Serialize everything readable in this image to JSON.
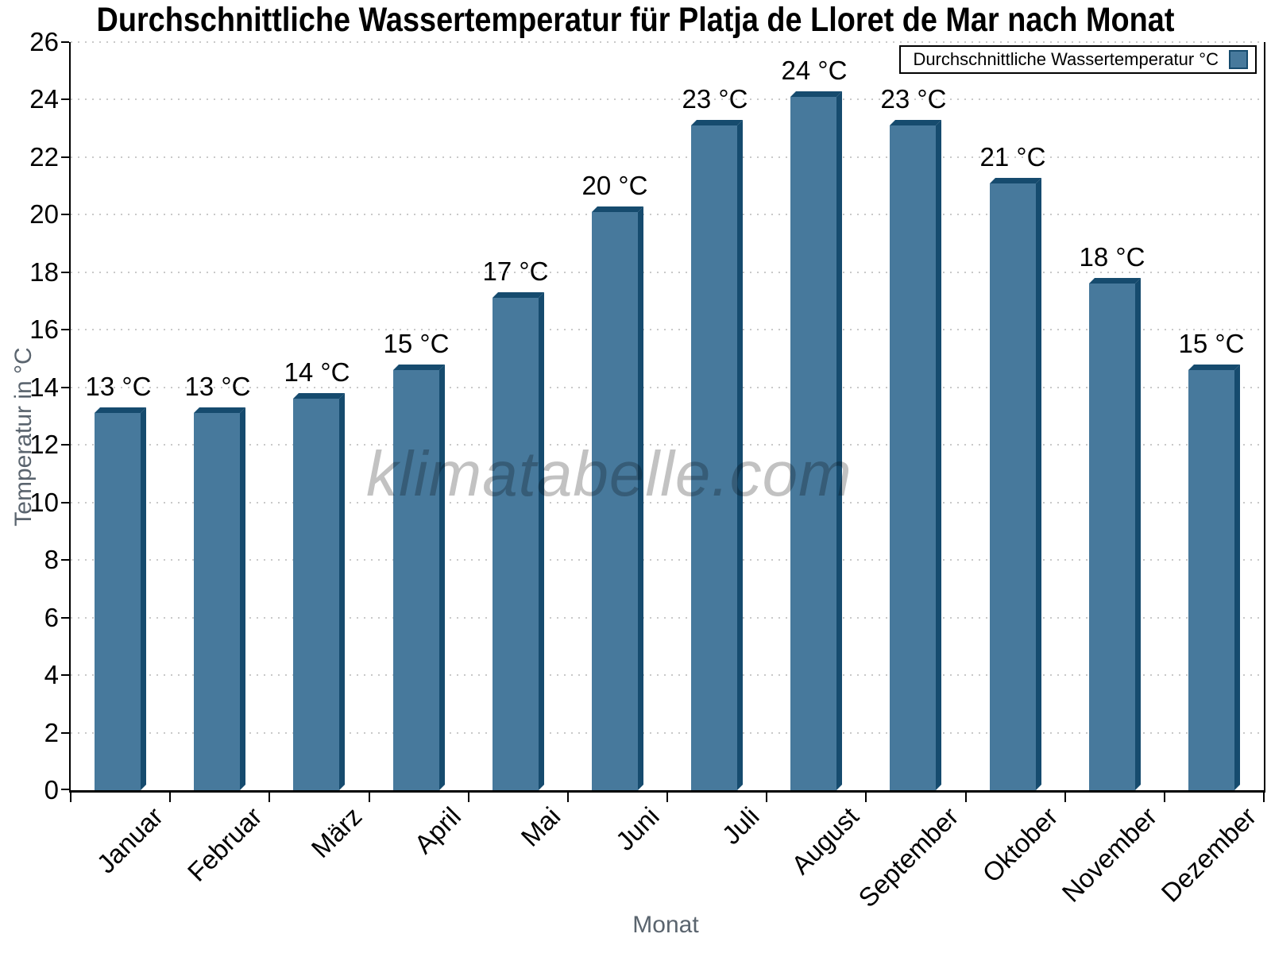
{
  "chart_data": {
    "type": "bar",
    "title": "Durchschnittliche Wassertemperatur für Platja de Lloret de Mar nach Monat",
    "xlabel": "Monat",
    "ylabel": "Temperatur in °C",
    "legend_label": "Durchschnittliche Wassertemperatur °C",
    "legend_position": "top-right",
    "watermark": "klimatabelle.com",
    "categories": [
      "Januar",
      "Februar",
      "März",
      "April",
      "Mai",
      "Juni",
      "Juli",
      "August",
      "September",
      "Oktober",
      "November",
      "Dezember"
    ],
    "values": [
      13.1,
      13.1,
      13.6,
      14.6,
      17.1,
      20.1,
      23.1,
      24.1,
      23.1,
      21.1,
      17.6,
      14.6
    ],
    "value_labels": [
      "13 °C",
      "13 °C",
      "14 °C",
      "15 °C",
      "17 °C",
      "20 °C",
      "23 °C",
      "24 °C",
      "23 °C",
      "21 °C",
      "18 °C",
      "15 °C"
    ],
    "ylim": [
      0,
      26
    ],
    "ytick_step": 2,
    "grid": "horizontal-dotted",
    "colors": {
      "bar_front": "#47799C",
      "bar_side": "#164B6E",
      "grid_dots": "#c9c9c9",
      "axis_line": "#000000",
      "axis_title": "#5a646e",
      "watermark": "#c2c2c2",
      "background": "#ffffff"
    }
  }
}
